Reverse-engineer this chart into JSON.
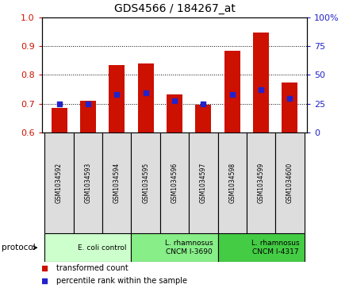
{
  "title": "GDS4566 / 184267_at",
  "categories": [
    "GSM1034592",
    "GSM1034593",
    "GSM1034594",
    "GSM1034595",
    "GSM1034596",
    "GSM1034597",
    "GSM1034598",
    "GSM1034599",
    "GSM1034600"
  ],
  "transformed_count": [
    0.685,
    0.71,
    0.833,
    0.84,
    0.733,
    0.695,
    0.885,
    0.948,
    0.773
  ],
  "percentile_rank_values": [
    0.7,
    0.7,
    0.733,
    0.737,
    0.71,
    0.7,
    0.733,
    0.748,
    0.718
  ],
  "ylim": [
    0.6,
    1.0
  ],
  "y2lim": [
    0,
    100
  ],
  "yticks": [
    0.6,
    0.7,
    0.8,
    0.9,
    1.0
  ],
  "y2ticks": [
    0,
    25,
    50,
    75,
    100
  ],
  "bar_bottom": 0.6,
  "bar_color": "#cc1100",
  "dot_color": "#2222cc",
  "dot_size": 18,
  "groups": [
    {
      "label": "E. coli control",
      "start": 0,
      "end": 3,
      "color": "#ccffcc"
    },
    {
      "label": "L. rhamnosus\nCNCM I-3690",
      "start": 3,
      "end": 6,
      "color": "#88ee88"
    },
    {
      "label": "L. rhamnosus\nCNCM I-4317",
      "start": 6,
      "end": 9,
      "color": "#44cc44"
    }
  ],
  "protocol_label": "protocol",
  "tick_color_left": "#cc1100",
  "tick_color_right": "#2222cc",
  "bar_width": 0.55,
  "cell_color": "#dddddd",
  "grid_lines": [
    0.7,
    0.8,
    0.9
  ]
}
